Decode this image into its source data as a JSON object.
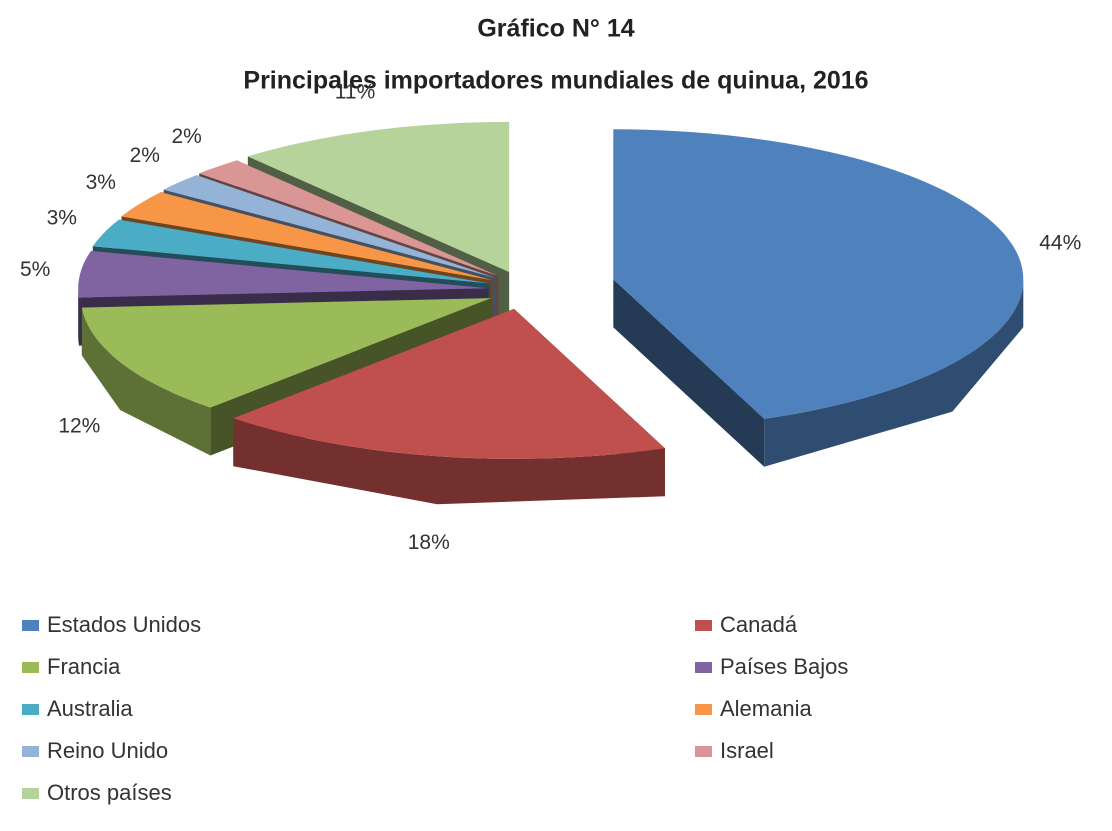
{
  "chart_data": {
    "type": "pie3d",
    "title": "Gráfico N° 14",
    "subtitle": "Principales importadores mundiales de quinua, 2016",
    "categories": [
      "Estados Unidos",
      "Canadá",
      "Francia",
      "Países Bajos",
      "Australia",
      "Alemania",
      "Reino Unido",
      "Israel",
      "Otros países"
    ],
    "values": [
      44,
      18,
      12,
      5,
      3,
      3,
      2,
      2,
      11
    ],
    "value_labels": [
      "44%",
      "18%",
      "12%",
      "5%",
      "3%",
      "3%",
      "2%",
      "2%",
      "11%"
    ],
    "colors": [
      "#4f81bd",
      "#c0504d",
      "#9bbb59",
      "#8064a2",
      "#4bacc6",
      "#f79646",
      "#95b3d7",
      "#d99694",
      "#b5d39a"
    ],
    "legend": "bottom"
  }
}
